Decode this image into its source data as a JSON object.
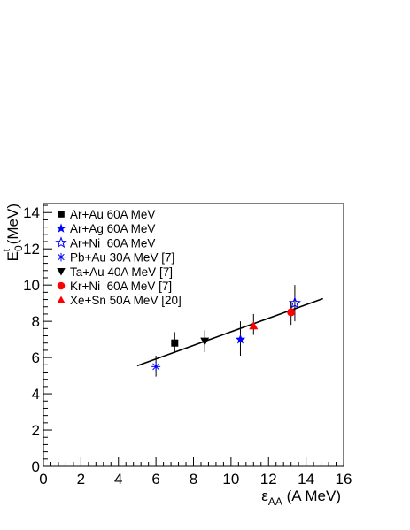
{
  "chart_data": {
    "type": "scatter",
    "title": "",
    "xlabel": {
      "base": "ε",
      "sub": "AA",
      "rest": " (A MeV)"
    },
    "ylabel": {
      "base": "E",
      "sub": "0",
      "sup": "t",
      "rest": " (MeV)"
    },
    "xlim": [
      0,
      16
    ],
    "ylim": [
      0,
      14.5
    ],
    "xticks": [
      0,
      2,
      4,
      6,
      8,
      10,
      12,
      14,
      16
    ],
    "yticks": [
      0,
      2,
      4,
      6,
      8,
      10,
      12,
      14
    ],
    "grid": false,
    "legend_position": "top-left",
    "series": [
      {
        "name": "Ar+Au 60A MeV",
        "marker": "square",
        "color": "#000000",
        "points": [
          {
            "x": 7.0,
            "y": 6.8,
            "ylo": 6.25,
            "yhi": 7.4
          }
        ]
      },
      {
        "name": "Ar+Ag 60A MeV",
        "marker": "star",
        "color": "#0000ff",
        "points": [
          {
            "x": 10.5,
            "y": 7.0,
            "ylo": 6.1,
            "yhi": 8.0
          }
        ]
      },
      {
        "name": "Ar+Ni  60A MeV",
        "marker": "open-star",
        "color": "#0000ff",
        "points": [
          {
            "x": 13.4,
            "y": 9.0,
            "ylo": 8.0,
            "yhi": 10.0
          }
        ]
      },
      {
        "name": "Pb+Au 30A MeV [7]",
        "marker": "asterisk",
        "color": "#0000ff",
        "points": [
          {
            "x": 6.0,
            "y": 5.5,
            "ylo": 4.95,
            "yhi": 6.1
          }
        ]
      },
      {
        "name": "Ta+Au 40A MeV [7]",
        "marker": "triangle-down",
        "color": "#000000",
        "points": [
          {
            "x": 8.6,
            "y": 6.9,
            "ylo": 6.3,
            "yhi": 7.5
          }
        ]
      },
      {
        "name": "Kr+Ni  60A MeV [7]",
        "marker": "circle",
        "color": "#ff0000",
        "points": [
          {
            "x": 13.2,
            "y": 8.5,
            "ylo": 7.8,
            "yhi": 9.1
          }
        ]
      },
      {
        "name": "Xe+Sn 50A MeV [20]",
        "marker": "triangle-up",
        "color": "#ff0000",
        "points": [
          {
            "x": 11.2,
            "y": 7.75,
            "ylo": 7.25,
            "yhi": 8.4
          }
        ]
      }
    ],
    "fit_line": {
      "x": [
        5.0,
        14.9
      ],
      "y": [
        5.55,
        9.25
      ],
      "color": "#000000"
    }
  }
}
